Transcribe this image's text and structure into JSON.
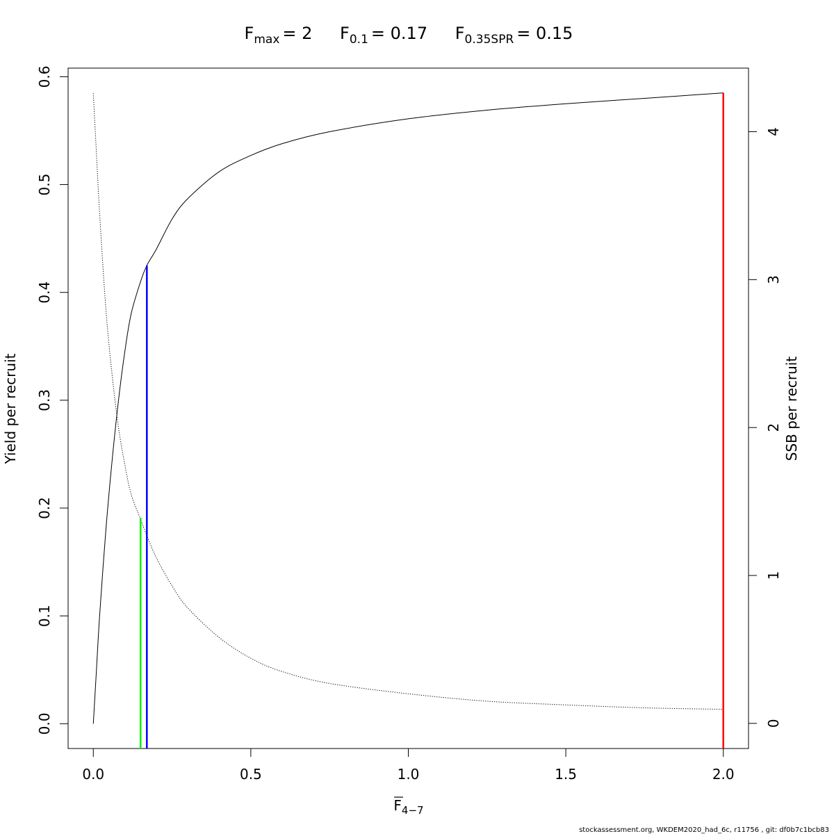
{
  "chart_data": {
    "type": "line",
    "title_parts": {
      "fmax": {
        "label": "F",
        "sub": "max",
        "value": "= 2"
      },
      "f01": {
        "label": "F",
        "sub": "0.1",
        "value": "= 0.17"
      },
      "fspr": {
        "label": "F",
        "sub": "0.35SPR",
        "value": "= 0.15"
      }
    },
    "xlabel": {
      "base": "F",
      "sub": "4−7",
      "overline": true
    },
    "ylabel": "Yield per recruit",
    "ylabel_right": "SSB per recruit",
    "xlim": [
      -0.08,
      2.08
    ],
    "ylim": [
      -0.023,
      0.608
    ],
    "ylim_right": [
      -0.17,
      4.43
    ],
    "x_ticks": [
      "0.0",
      "0.5",
      "1.0",
      "1.5",
      "2.0"
    ],
    "x_tick_values": [
      0,
      0.5,
      1.0,
      1.5,
      2.0
    ],
    "y_ticks": [
      "0.0",
      "0.1",
      "0.2",
      "0.3",
      "0.4",
      "0.5",
      "0.6"
    ],
    "y_tick_values": [
      0,
      0.1,
      0.2,
      0.3,
      0.4,
      0.5,
      0.6
    ],
    "y_right_ticks": [
      "0",
      "1",
      "2",
      "3",
      "4"
    ],
    "y_right_tick_values": [
      0,
      1,
      2,
      3,
      4
    ],
    "series": [
      {
        "axis": "left",
        "style": "solid",
        "x": [
          0,
          0.01,
          0.02,
          0.04,
          0.06,
          0.08,
          0.1,
          0.12,
          0.15,
          0.17,
          0.2,
          0.25,
          0.3,
          0.4,
          0.5,
          0.6,
          0.75,
          1.0,
          1.25,
          1.5,
          1.75,
          2.0
        ],
        "y": [
          0,
          0.05,
          0.1,
          0.18,
          0.245,
          0.3,
          0.345,
          0.38,
          0.41,
          0.425,
          0.44,
          0.468,
          0.487,
          0.512,
          0.527,
          0.538,
          0.549,
          0.561,
          0.569,
          0.575,
          0.58,
          0.585
        ]
      },
      {
        "axis": "right",
        "style": "dotted",
        "x": [
          0,
          0.01,
          0.02,
          0.04,
          0.06,
          0.08,
          0.1,
          0.12,
          0.15,
          0.17,
          0.2,
          0.25,
          0.3,
          0.4,
          0.5,
          0.6,
          0.75,
          1.0,
          1.25,
          1.5,
          1.75,
          2.0
        ],
        "y": [
          4.26,
          3.85,
          3.45,
          2.8,
          2.35,
          2.0,
          1.75,
          1.55,
          1.38,
          1.27,
          1.12,
          0.93,
          0.78,
          0.58,
          0.44,
          0.35,
          0.27,
          0.2,
          0.15,
          0.125,
          0.105,
          0.095
        ]
      }
    ],
    "reference_lines": [
      {
        "name": "F0.35SPR",
        "x": 0.15,
        "y_top_left": 0.191,
        "color": "#00ee00"
      },
      {
        "name": "F0.1",
        "x": 0.17,
        "y_top_left": 0.425,
        "color": "#0000ff"
      },
      {
        "name": "Fmax",
        "x": 2.0,
        "y_top_left": 0.585,
        "color": "#ff0000"
      }
    ],
    "grid": false,
    "legend": "none"
  },
  "footer": "stockassessment.org, WKDEM2020_had_6c, r11756 , git: df0b7c1bcb83"
}
